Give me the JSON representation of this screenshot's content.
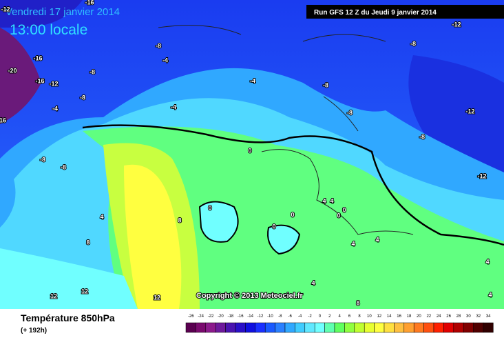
{
  "header": {
    "date": "Vendredi 17 janvier 2014",
    "time": "13:00 locale",
    "run": "Run GFS 12 Z du Jeudi 9 janvier 2014"
  },
  "map": {
    "contour_labels": [
      -16,
      -16,
      -20,
      -16,
      -12,
      -8,
      -8,
      -4,
      -8,
      -4,
      -4,
      -4,
      -8,
      -8,
      -12,
      -12,
      -8,
      -8,
      -12,
      -8,
      -8,
      0,
      0,
      4,
      8,
      8,
      4,
      4,
      0,
      0,
      0,
      0,
      4,
      4,
      4,
      8,
      4,
      4,
      12,
      12,
      12,
      -12,
      16
    ],
    "copyright": "Copyright © 2013 Meteociel.fr"
  },
  "footer": {
    "title": "Température 850hPa",
    "lead": "(+ 192h)"
  },
  "legend": {
    "ticks": [
      -26,
      -24,
      -22,
      -20,
      -18,
      -16,
      -14,
      -12,
      -10,
      -8,
      -6,
      -4,
      -2,
      0,
      2,
      4,
      6,
      8,
      10,
      12,
      14,
      16,
      18,
      20,
      22,
      24,
      26,
      28,
      30,
      32,
      34
    ],
    "colors": [
      "#5a0050",
      "#7a0a6e",
      "#8c1a8c",
      "#6e1a9c",
      "#4a14b0",
      "#2a10c8",
      "#1010e0",
      "#1a30ff",
      "#1a5aff",
      "#2a80ff",
      "#30a8ff",
      "#40ccff",
      "#60e8ff",
      "#70ffff",
      "#60ffb0",
      "#60ff60",
      "#90ff40",
      "#c0ff30",
      "#e8ff30",
      "#ffff40",
      "#ffe040",
      "#ffc040",
      "#ffa030",
      "#ff7a20",
      "#ff5010",
      "#ff2000",
      "#e00000",
      "#b00000",
      "#800000",
      "#500000",
      "#300000"
    ]
  }
}
